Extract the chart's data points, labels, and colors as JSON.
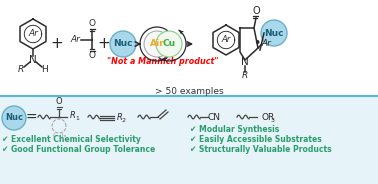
{
  "bg_color": "#ffffff",
  "bottom_bg": "#e6f3f8",
  "divider_color": "#5bb8d4",
  "title_text": "> 50 examples",
  "red_text": "\"Not a Mannich product\"",
  "air_color": "#f5a623",
  "cu_color": "#3ab03e",
  "nuc_color": "#a8d8ea",
  "nuc_border": "#6ab0cc",
  "nuc_text": "#1a5f7a",
  "line_color": "#2a2a2a",
  "teal_check": "#2a9d6e",
  "checks": [
    "✔ Excellent Chemical Selectivity",
    "✔ Good Functional Group Tolerance",
    "✔ Modular Synthesis",
    "✔ Easily Accessible Substrates",
    "✔ Structurally Valuable Products"
  ]
}
